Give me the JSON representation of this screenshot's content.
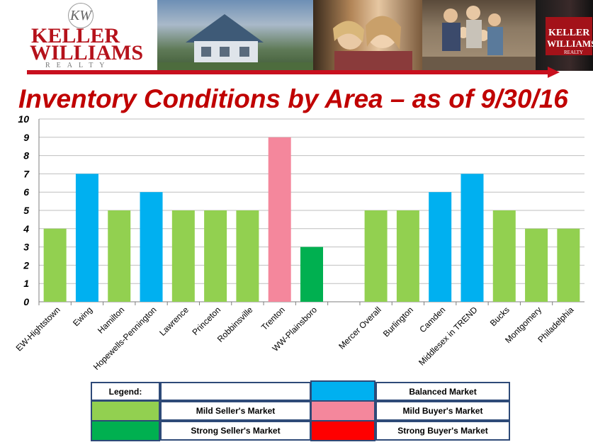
{
  "brand": {
    "name_line1": "KELLER",
    "name_line2": "WILLIAMS",
    "name_line3": "REALTY",
    "monogram": "KW",
    "brand_color": "#b5121b"
  },
  "title": "Inventory Conditions by Area – as of 9/30/16",
  "colors": {
    "mild_seller": "#92d050",
    "strong_seller": "#00b050",
    "balanced": "#00b0f0",
    "mild_buyer": "#f4879c",
    "strong_buyer": "#ff0000",
    "title": "#c00000"
  },
  "chart_data": {
    "type": "bar",
    "title": "Inventory Conditions by Area – as of 9/30/16",
    "ylim": [
      0,
      10
    ],
    "yticks": [
      0,
      1,
      2,
      3,
      4,
      5,
      6,
      7,
      8,
      9,
      10
    ],
    "grid": true,
    "categories": [
      "EW-Hightstown",
      "Ewing",
      "Hamilton",
      "Hopewells-Pennington",
      "Lawrence",
      "Princeton",
      "Robbinsville",
      "Trenton",
      "WW-Plainsboro",
      "",
      "Mercer Overall",
      "Burlington",
      "Camden",
      "Middlesex in TREND",
      "Bucks",
      "Montgomery",
      "Philadelphia"
    ],
    "values": [
      4,
      7,
      5,
      6,
      5,
      5,
      5,
      9,
      3,
      null,
      5,
      5,
      6,
      7,
      5,
      4,
      4
    ],
    "market": [
      "mild_seller",
      "balanced",
      "mild_seller",
      "balanced",
      "mild_seller",
      "mild_seller",
      "mild_seller",
      "mild_buyer",
      "strong_seller",
      null,
      "mild_seller",
      "mild_seller",
      "balanced",
      "balanced",
      "mild_seller",
      "mild_seller",
      "mild_seller"
    ]
  },
  "legend": {
    "title": "Legend:",
    "balanced": "Balanced Market",
    "mild_seller": "Mild Seller's Market",
    "mild_buyer": "Mild Buyer's Market",
    "strong_seller": "Strong Seller's Market",
    "strong_buyer": "Strong Buyer's Market"
  }
}
